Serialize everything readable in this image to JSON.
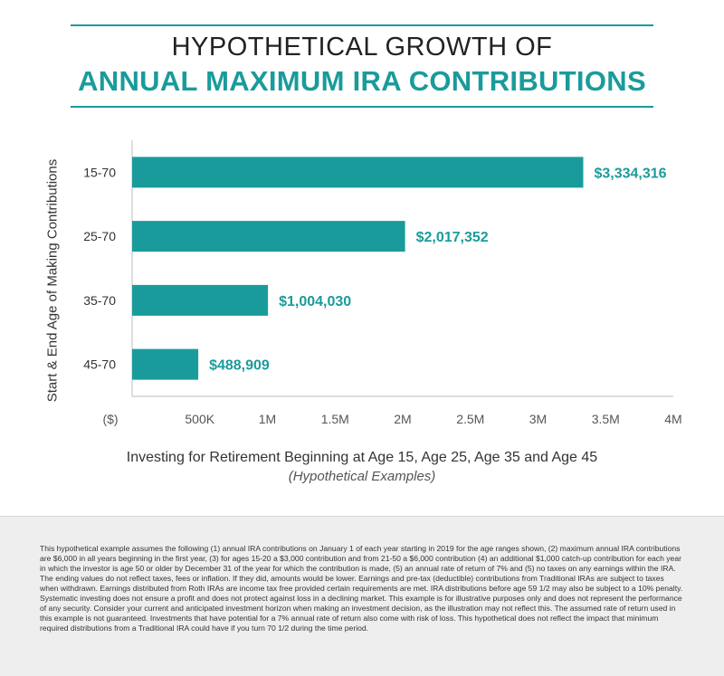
{
  "header": {
    "title_line1": "HYPOTHETICAL GROWTH OF",
    "title_line2": "ANNUAL MAXIMUM IRA CONTRIBUTIONS"
  },
  "chart_data": {
    "type": "bar",
    "orientation": "horizontal",
    "categories": [
      "15-70",
      "25-70",
      "35-70",
      "45-70"
    ],
    "values": [
      3334316,
      2017352,
      1004030,
      488909
    ],
    "data_labels": [
      "$3,334,316",
      "$2,017,352",
      "$1,004,030",
      "$488,909"
    ],
    "ylabel": "Start & End Age of Making Contributions",
    "xlabel": "Investing for Retirement Beginning at Age 15, Age 25, Age 35 and Age 45",
    "xlabel_note": "(Hypothetical Examples)",
    "xlim": [
      0,
      4000000
    ],
    "x_ticks": [
      0,
      500000,
      1000000,
      1500000,
      2000000,
      2500000,
      3000000,
      3500000,
      4000000
    ],
    "x_tick_labels": [
      "($)",
      "500K",
      "1M",
      "1.5M",
      "2M",
      "2.5M",
      "3M",
      "3.5M",
      "4M"
    ],
    "bar_color": "#1a9b9b",
    "grid": false
  },
  "footer": {
    "disclaimer": "This hypothetical example assumes the following (1) annual IRA contributions on January 1 of each year starting in 2019 for the age ranges shown,  (2) maximum annual IRA contributions are $6,000 in all years beginning in the first year, (3) for ages 15-20 a $3,000 contribution and from 21-50 a $6,000 contribution (4)  an additional $1,000 catch-up contribution for each year in which the investor is age 50 or older by December 31 of the year for which the contribution is made,  (5)  an annual rate of return of 7% and (5) no taxes on any earnings within the IRA.  The ending values do not reflect taxes, fees or inflation. If they did, amounts would be lower.  Earnings and pre-tax (deductible) contributions from Traditional IRAs are subject to taxes when withdrawn.  Earnings distributed from Roth IRAs are income tax free provided certain requirements are met. IRA distributions before age 59 1/2 may also be subject to a 10% penalty. Systematic investing does not ensure a profit and does not protect against loss in a declining market. This example is for illustrative purposes only and does not represent the performance of any security. Consider your current and anticipated investment horizon when making an investment decision, as the illustration may not reflect this. The assumed rate of return used in this example is not guaranteed. Investments that have potential for a 7% annual rate of return also come with risk of loss. This hypothetical does not reflect the impact that minimum required distributions from a Traditional IRA could have if you turn 70 1/2 during the time period."
  }
}
